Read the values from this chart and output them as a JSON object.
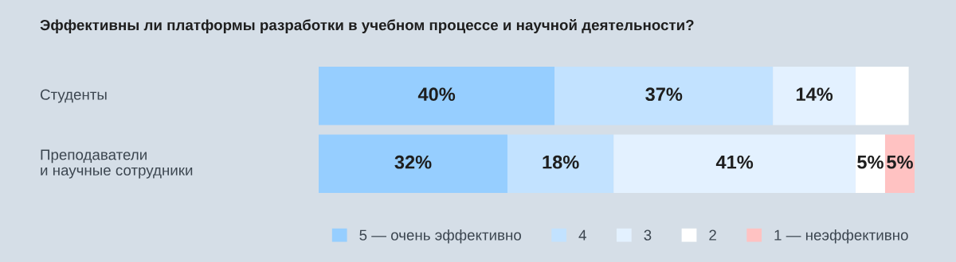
{
  "chart_data": {
    "type": "bar",
    "orientation": "horizontal",
    "stacked": true,
    "title": "Эффективны ли платформы разработки в учебном процессе и научной деятельности?",
    "categories": [
      "Студенты",
      "Преподаватели\nи научные сотрудники"
    ],
    "series": [
      {
        "name": "5 — очень эффективно",
        "color": "#96ceff",
        "values": [
          40,
          32
        ],
        "value_labels": [
          "40%",
          "32%"
        ]
      },
      {
        "name": "4",
        "color": "#c2e2ff",
        "values": [
          37,
          18
        ],
        "value_labels": [
          "37%",
          "18%"
        ]
      },
      {
        "name": "3",
        "color": "#e3f1ff",
        "values": [
          14,
          41
        ],
        "value_labels": [
          "14%",
          "41%"
        ]
      },
      {
        "name": "2",
        "color": "#ffffff",
        "values": [
          9,
          5
        ],
        "value_labels": [
          null,
          "5%"
        ]
      },
      {
        "name": "1 — неэффективно",
        "color": "#ffc2c2",
        "values": [
          0,
          5
        ],
        "value_labels": [
          null,
          "5%"
        ]
      }
    ],
    "legend": "bottom right"
  }
}
